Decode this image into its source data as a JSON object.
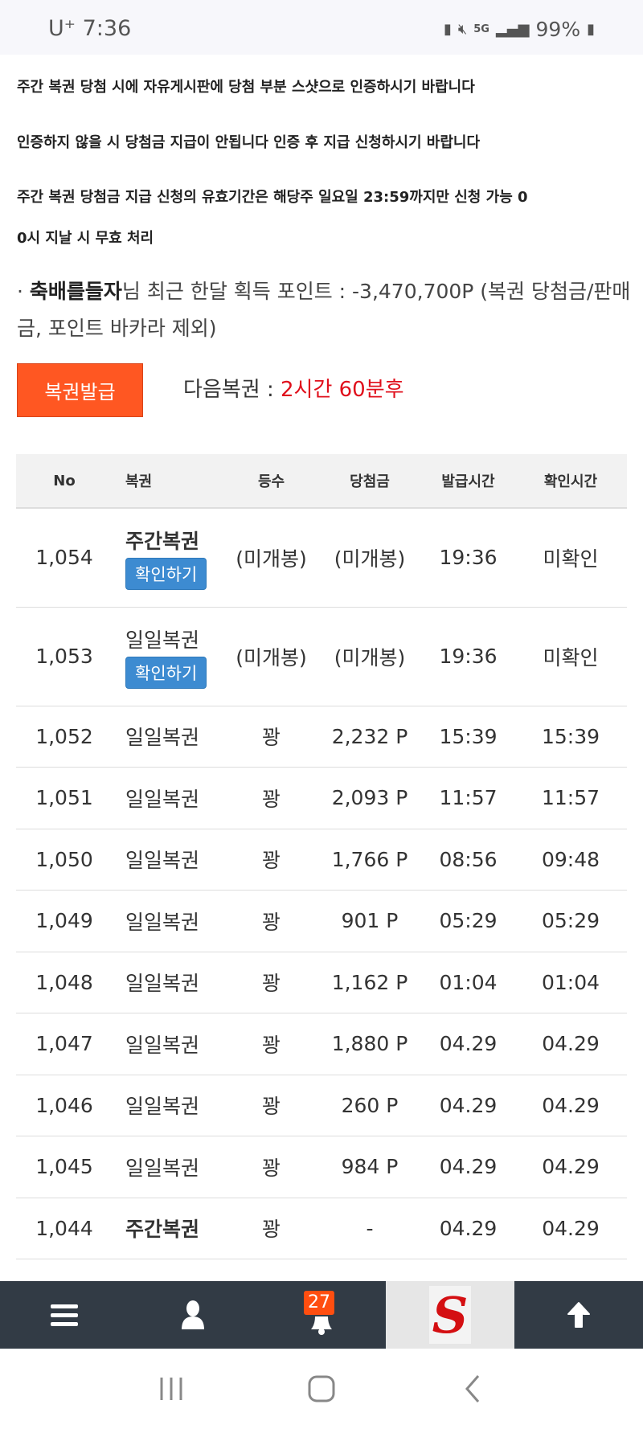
{
  "status_bar": {
    "carrier": "U⁺",
    "time": "7:36",
    "battery": "99%",
    "network": "5G"
  },
  "notices": [
    "주간 복권 당첨 시에 자유게시판에 당첨 부분 스샷으로 인증하시기 바랍니다",
    "인증하지 않을 시 당첨금 지급이 안됩니다 인증 후 지급 신청하시기 바랍니다",
    "주간 복권 당첨금 지급 신청의 유효기간은 해당주 일요일 23:59까지만 신청 가능 0",
    "0시 지날 시 무효 처리"
  ],
  "points": {
    "bullet": "·",
    "username": "축배를들자",
    "text": "님 최근 한달 획득 포인트 : -3,470,700P (복권 당첨금/판매금, 포인트 바카라 제외)"
  },
  "issue_button": "복권발급",
  "next": {
    "label": "다음복권 : ",
    "value": "2시간 60분후"
  },
  "table": {
    "headers": [
      "No",
      "복권",
      "등수",
      "당첨금",
      "발급시간",
      "확인시간"
    ],
    "check_label": "확인하기",
    "rows": [
      {
        "no": "1,054",
        "ticket": "주간복권",
        "bold": true,
        "check": true,
        "rank": "(미개봉)",
        "prize": "(미개봉)",
        "issued": "19:36",
        "confirmed": "미확인",
        "unconfirmed": true
      },
      {
        "no": "1,053",
        "ticket": "일일복권",
        "bold": false,
        "check": true,
        "rank": "(미개봉)",
        "prize": "(미개봉)",
        "issued": "19:36",
        "confirmed": "미확인",
        "unconfirmed": true
      },
      {
        "no": "1,052",
        "ticket": "일일복권",
        "rank": "꽝",
        "prize": "2,232 P",
        "issued": "15:39",
        "confirmed": "15:39"
      },
      {
        "no": "1,051",
        "ticket": "일일복권",
        "rank": "꽝",
        "prize": "2,093 P",
        "issued": "11:57",
        "confirmed": "11:57"
      },
      {
        "no": "1,050",
        "ticket": "일일복권",
        "rank": "꽝",
        "prize": "1,766 P",
        "issued": "08:56",
        "confirmed": "09:48"
      },
      {
        "no": "1,049",
        "ticket": "일일복권",
        "rank": "꽝",
        "prize": "901 P",
        "issued": "05:29",
        "confirmed": "05:29"
      },
      {
        "no": "1,048",
        "ticket": "일일복권",
        "rank": "꽝",
        "prize": "1,162 P",
        "issued": "01:04",
        "confirmed": "01:04"
      },
      {
        "no": "1,047",
        "ticket": "일일복권",
        "rank": "꽝",
        "prize": "1,880 P",
        "issued": "04.29",
        "confirmed": "04.29"
      },
      {
        "no": "1,046",
        "ticket": "일일복권",
        "rank": "꽝",
        "prize": "260 P",
        "issued": "04.29",
        "confirmed": "04.29"
      },
      {
        "no": "1,045",
        "ticket": "일일복권",
        "rank": "꽝",
        "prize": "984 P",
        "issued": "04.29",
        "confirmed": "04.29"
      },
      {
        "no": "1,044",
        "ticket": "주간복권",
        "bold": true,
        "rank": "꽝",
        "prize": "-",
        "issued": "04.29",
        "confirmed": "04.29"
      }
    ]
  },
  "bottom_nav": {
    "notification_count": "27",
    "logo_letter": "S",
    "items": [
      "menu-icon",
      "user-icon",
      "bell-icon",
      "site-logo",
      "arrow-up-icon"
    ]
  },
  "colors": {
    "accent": "#ff5722",
    "check_button": "#3d8bd1",
    "unconfirmed": "#f0a020",
    "next_time": "#e0101c",
    "nav_bg": "#323b45"
  }
}
